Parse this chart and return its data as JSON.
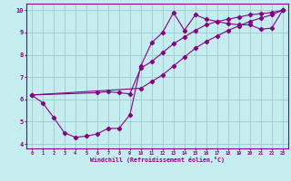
{
  "xlabel": "Windchill (Refroidissement éolien,°C)",
  "xlim": [
    -0.5,
    23.5
  ],
  "ylim": [
    3.8,
    10.3
  ],
  "xticks": [
    0,
    1,
    2,
    3,
    4,
    5,
    6,
    7,
    8,
    9,
    10,
    11,
    12,
    13,
    14,
    15,
    16,
    17,
    18,
    19,
    20,
    21,
    22,
    23
  ],
  "yticks": [
    4,
    5,
    6,
    7,
    8,
    9,
    10
  ],
  "bg_color": "#c5ecee",
  "line_color": "#880088",
  "grid_color": "#99cccc",
  "line1_x": [
    0,
    1,
    2,
    3,
    4,
    5,
    6,
    7,
    8,
    9,
    10,
    11,
    12,
    13,
    14,
    15,
    16,
    17,
    18,
    19,
    20,
    21,
    22,
    23
  ],
  "line1_y": [
    6.2,
    5.85,
    5.2,
    4.5,
    4.3,
    4.35,
    4.45,
    4.7,
    4.7,
    5.3,
    7.5,
    8.55,
    9.0,
    9.9,
    9.1,
    9.8,
    9.6,
    9.5,
    9.4,
    9.35,
    9.35,
    9.15,
    9.2,
    10.0
  ],
  "line2_x": [
    0,
    6,
    7,
    8,
    9,
    10,
    11,
    12,
    13,
    14,
    15,
    16,
    17,
    18,
    19,
    20,
    21,
    22,
    23
  ],
  "line2_y": [
    6.2,
    6.3,
    6.35,
    6.3,
    6.25,
    7.4,
    7.7,
    8.1,
    8.5,
    8.8,
    9.1,
    9.35,
    9.5,
    9.6,
    9.7,
    9.8,
    9.85,
    9.9,
    10.0
  ],
  "line3_x": [
    0,
    10,
    11,
    12,
    13,
    14,
    15,
    16,
    17,
    18,
    19,
    20,
    21,
    22,
    23
  ],
  "line3_y": [
    6.2,
    6.5,
    6.8,
    7.1,
    7.5,
    7.9,
    8.3,
    8.6,
    8.85,
    9.1,
    9.3,
    9.5,
    9.65,
    9.8,
    10.0
  ]
}
